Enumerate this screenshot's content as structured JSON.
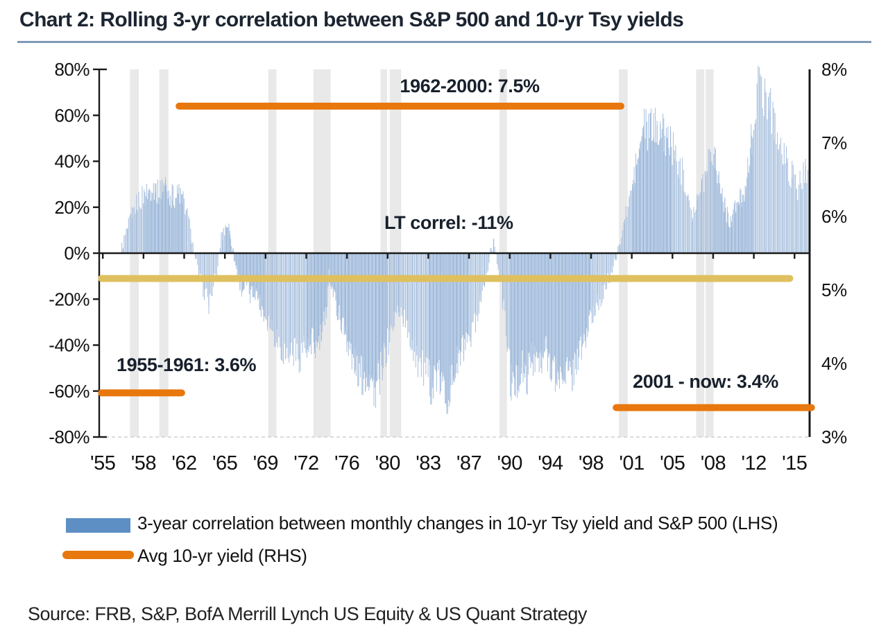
{
  "title": "Chart 2: Rolling 3-yr correlation between S&P 500 and 10-yr Tsy yields",
  "source": "Source: FRB, S&P, BofA Merrill Lynch US Equity & US Quant Strategy",
  "legend": {
    "items": [
      {
        "swatch": "bar",
        "label": "3-year correlation between monthly changes in 10-yr Tsy yield and S&P 500 (LHS)"
      },
      {
        "swatch": "line",
        "label": "Avg 10-yr yield (RHS)"
      }
    ]
  },
  "colors": {
    "bar_fill": "#a9c2e0",
    "bar_accent": "#8fa9ce",
    "legend_blue": "#5e8fc4",
    "orange": "#e8770d",
    "yellow": "#dfc05f",
    "recession_band": "#e3e3e3",
    "axis": "#1a1a1a",
    "title_underline": "#7e99b8"
  },
  "chart_data": {
    "type": "bar",
    "title": "Rolling 3-yr correlation between S&P 500 and 10-yr Tsy yields",
    "left_axis": {
      "ticks": [
        "80%",
        "60%",
        "40%",
        "20%",
        "0%",
        "-20%",
        "-40%",
        "-60%",
        "-80%"
      ],
      "min": -80,
      "max": 80,
      "units": "%"
    },
    "right_axis": {
      "ticks": [
        "8%",
        "7%",
        "6%",
        "5%",
        "4%",
        "3%"
      ],
      "min": 3,
      "max": 8,
      "units": "%"
    },
    "x_tick_labels": [
      "'55",
      "'58",
      "'62",
      "'65",
      "'69",
      "'72",
      "'76",
      "'80",
      "'83",
      "'87",
      "'90",
      "'94",
      "'98",
      "'01",
      "'05",
      "'08",
      "'12",
      "'15"
    ],
    "x_tick_years": [
      1955,
      1958,
      1962,
      1965,
      1969,
      1972,
      1976,
      1980,
      1983,
      1987,
      1990,
      1994,
      1998,
      2001,
      2005,
      2008,
      2012,
      2015
    ],
    "grid": false,
    "legend_position": "bottom",
    "series_name": "3-year correlation between monthly changes in 10-yr Tsy yield and S&P 500 (LHS)",
    "series_start_year": 1956.4,
    "series_end_year": 2016.1,
    "correlation_keyframes": [
      [
        1956.4,
        3
      ],
      [
        1956.8,
        10
      ],
      [
        1957.2,
        17
      ],
      [
        1957.6,
        23
      ],
      [
        1958.0,
        25
      ],
      [
        1958.5,
        27
      ],
      [
        1959.0,
        29
      ],
      [
        1959.5,
        26
      ],
      [
        1960.0,
        30
      ],
      [
        1960.5,
        26
      ],
      [
        1961.0,
        24
      ],
      [
        1961.5,
        26
      ],
      [
        1962.0,
        22
      ],
      [
        1962.4,
        12
      ],
      [
        1962.7,
        2
      ],
      [
        1963.0,
        -8
      ],
      [
        1963.4,
        -15
      ],
      [
        1963.8,
        -22
      ],
      [
        1964.1,
        -16
      ],
      [
        1964.4,
        -8
      ],
      [
        1964.7,
        6
      ],
      [
        1965.0,
        11
      ],
      [
        1965.3,
        13
      ],
      [
        1965.6,
        7
      ],
      [
        1965.9,
        -2
      ],
      [
        1966.3,
        -10
      ],
      [
        1966.7,
        -16
      ],
      [
        1967.1,
        -13
      ],
      [
        1967.5,
        -19
      ],
      [
        1968.0,
        -16
      ],
      [
        1968.5,
        -22
      ],
      [
        1969.0,
        -27
      ],
      [
        1969.4,
        -31
      ],
      [
        1969.8,
        -36
      ],
      [
        1970.2,
        -41
      ],
      [
        1970.6,
        -45
      ],
      [
        1971.0,
        -42
      ],
      [
        1971.4,
        -46
      ],
      [
        1971.8,
        -40
      ],
      [
        1972.2,
        -44
      ],
      [
        1972.6,
        -38
      ],
      [
        1973.0,
        -42
      ],
      [
        1973.5,
        -36
      ],
      [
        1974.0,
        -25
      ],
      [
        1974.2,
        -8
      ],
      [
        1974.5,
        -14
      ],
      [
        1974.9,
        -22
      ],
      [
        1975.3,
        -28
      ],
      [
        1975.7,
        -33
      ],
      [
        1976.1,
        -38
      ],
      [
        1976.5,
        -45
      ],
      [
        1977.0,
        -50
      ],
      [
        1977.5,
        -54
      ],
      [
        1978.0,
        -52
      ],
      [
        1978.5,
        -57
      ],
      [
        1978.9,
        -59
      ],
      [
        1979.3,
        -52
      ],
      [
        1979.7,
        -45
      ],
      [
        1980.1,
        -38
      ],
      [
        1980.5,
        -28
      ],
      [
        1980.9,
        -24
      ],
      [
        1981.3,
        -30
      ],
      [
        1981.7,
        -38
      ],
      [
        1982.1,
        -45
      ],
      [
        1982.5,
        -50
      ],
      [
        1982.9,
        -54
      ],
      [
        1983.3,
        -57
      ],
      [
        1983.7,
        -52
      ],
      [
        1984.1,
        -56
      ],
      [
        1984.5,
        -59
      ],
      [
        1984.9,
        -61
      ],
      [
        1985.3,
        -56
      ],
      [
        1985.7,
        -50
      ],
      [
        1986.1,
        -44
      ],
      [
        1986.5,
        -40
      ],
      [
        1986.9,
        -43
      ],
      [
        1987.3,
        -35
      ],
      [
        1987.7,
        -25
      ],
      [
        1988.0,
        -17
      ],
      [
        1988.3,
        -10
      ],
      [
        1988.6,
        3
      ],
      [
        1988.9,
        4
      ],
      [
        1989.1,
        -4
      ],
      [
        1989.3,
        -12
      ],
      [
        1989.6,
        -25
      ],
      [
        1989.9,
        -45
      ],
      [
        1990.1,
        -57
      ],
      [
        1990.4,
        -60
      ],
      [
        1990.8,
        -55
      ],
      [
        1991.2,
        -50
      ],
      [
        1991.6,
        -55
      ],
      [
        1992.0,
        -48
      ],
      [
        1992.5,
        -44
      ],
      [
        1993.0,
        -50
      ],
      [
        1993.5,
        -42
      ],
      [
        1994.0,
        -47
      ],
      [
        1994.5,
        -52
      ],
      [
        1995.0,
        -55
      ],
      [
        1995.5,
        -50
      ],
      [
        1996.0,
        -55
      ],
      [
        1996.5,
        -47
      ],
      [
        1997.0,
        -42
      ],
      [
        1997.5,
        -36
      ],
      [
        1998.0,
        -28
      ],
      [
        1998.5,
        -22
      ],
      [
        1999.0,
        -16
      ],
      [
        1999.4,
        -10
      ],
      [
        1999.8,
        -4
      ],
      [
        2000.1,
        4
      ],
      [
        2000.4,
        12
      ],
      [
        2000.7,
        20
      ],
      [
        2001.0,
        28
      ],
      [
        2001.4,
        38
      ],
      [
        2001.8,
        45
      ],
      [
        2002.2,
        57
      ],
      [
        2002.5,
        52
      ],
      [
        2002.9,
        55
      ],
      [
        2003.3,
        54
      ],
      [
        2003.7,
        56
      ],
      [
        2004.1,
        52
      ],
      [
        2004.5,
        50
      ],
      [
        2004.9,
        47
      ],
      [
        2005.3,
        42
      ],
      [
        2005.7,
        36
      ],
      [
        2006.1,
        28
      ],
      [
        2006.5,
        18
      ],
      [
        2006.9,
        22
      ],
      [
        2007.3,
        32
      ],
      [
        2007.7,
        43
      ],
      [
        2008.0,
        46
      ],
      [
        2008.3,
        40
      ],
      [
        2008.7,
        30
      ],
      [
        2009.1,
        22
      ],
      [
        2009.5,
        14
      ],
      [
        2009.9,
        16
      ],
      [
        2010.3,
        20
      ],
      [
        2010.7,
        24
      ],
      [
        2011.1,
        28
      ],
      [
        2011.5,
        38
      ],
      [
        2011.9,
        55
      ],
      [
        2012.2,
        68
      ],
      [
        2012.5,
        74
      ],
      [
        2012.8,
        70
      ],
      [
        2013.1,
        67
      ],
      [
        2013.4,
        60
      ],
      [
        2013.7,
        52
      ],
      [
        2014.0,
        45
      ],
      [
        2014.4,
        40
      ],
      [
        2014.8,
        34
      ],
      [
        2015.2,
        28
      ],
      [
        2015.6,
        33
      ],
      [
        2016.0,
        38
      ],
      [
        2016.1,
        39
      ]
    ],
    "annotations": [
      {
        "id": "avg-yield-1962-2000",
        "label": "1962-2000: 7.5%",
        "axis": "rhs",
        "value": 7.5,
        "line_start_year": 1961.5,
        "line_end_year": 2000.2
      },
      {
        "id": "lt-correl",
        "label": "LT correl: -11%",
        "axis": "lhs",
        "value": -11,
        "line_start_year": 1954.9,
        "line_end_year": 2014.65
      },
      {
        "id": "avg-yield-1955-1961",
        "label": "1955-1961: 3.6%",
        "axis": "rhs",
        "value": 3.6,
        "line_start_year": 1954.9,
        "line_end_year": 1961.75
      },
      {
        "id": "avg-yield-2001-now",
        "label": "2001 - now: 3.4%",
        "axis": "rhs",
        "value": 3.4,
        "line_start_year": 1999.85,
        "line_end_year": 2016.25
      }
    ],
    "shaded_recession_bands_years": [
      [
        1957.0,
        1957.65
      ],
      [
        1959.55,
        1960.45
      ],
      [
        1969.2,
        1969.8
      ],
      [
        1972.7,
        1974.4
      ],
      [
        1979.3,
        1979.95
      ],
      [
        1980.15,
        1981.0
      ],
      [
        1989.25,
        1989.8
      ],
      [
        2000.05,
        2000.7
      ],
      [
        2006.75,
        2007.35
      ],
      [
        2007.45,
        2008.05
      ]
    ]
  }
}
